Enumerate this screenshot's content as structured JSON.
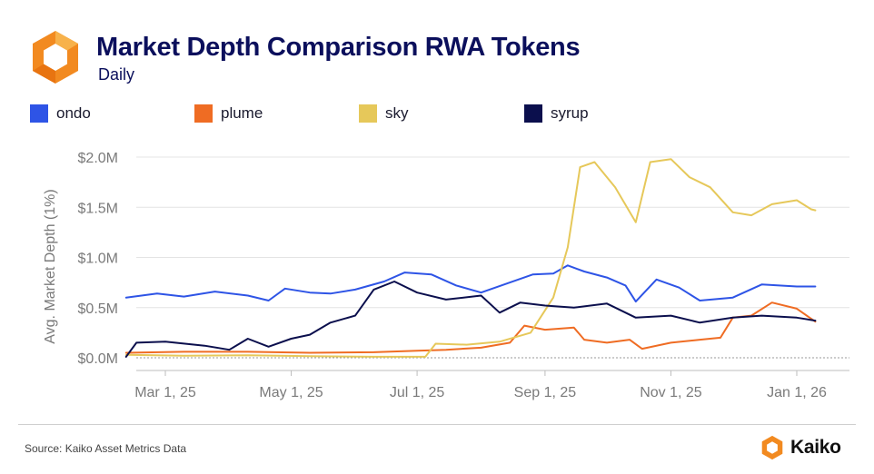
{
  "title": "Market Depth Comparison RWA Tokens",
  "subtitle": "Daily",
  "source": "Source: Kaiko Asset Metrics Data",
  "brand": "Kaiko",
  "colors": {
    "title": "#0b0f5c",
    "ondo": "#2e54e6",
    "plume": "#ef6c23",
    "sky": "#e6c85a",
    "syrup": "#0b0f4d",
    "logo": "#f28a20"
  },
  "legend": [
    {
      "key": "ondo",
      "label": "ondo"
    },
    {
      "key": "plume",
      "label": "plume"
    },
    {
      "key": "sky",
      "label": "sky"
    },
    {
      "key": "syrup",
      "label": "syrup"
    }
  ],
  "chart_data": {
    "type": "line",
    "title": "Market Depth Comparison RWA Tokens",
    "subtitle": "Daily",
    "xlabel": "",
    "ylabel": "Avg. Market Depth (1%)",
    "ylim": [
      0,
      2000000
    ],
    "yticks": [
      0,
      500000,
      1000000,
      1500000,
      2000000
    ],
    "ytick_labels": [
      "$0.0M",
      "$0.5M",
      "$1.0M",
      "$1.5M",
      "$2.0M"
    ],
    "x_range": [
      "2025-02-01",
      "2026-01-20"
    ],
    "xticks": [
      "2025-03-01",
      "2025-05-01",
      "2025-07-01",
      "2025-09-01",
      "2025-11-01",
      "2026-01-01"
    ],
    "xtick_labels": [
      "Mar 1, 25",
      "May 1, 25",
      "Jul 1, 25",
      "Sep 1, 25",
      "Nov 1, 25",
      "Jan 1, 26"
    ],
    "baseline_dashed": true,
    "series": [
      {
        "name": "ondo",
        "color": "#2e54e6",
        "points": [
          [
            "2025-02-10",
            600000
          ],
          [
            "2025-02-25",
            640000
          ],
          [
            "2025-03-10",
            610000
          ],
          [
            "2025-03-25",
            660000
          ],
          [
            "2025-04-10",
            620000
          ],
          [
            "2025-04-20",
            570000
          ],
          [
            "2025-04-28",
            690000
          ],
          [
            "2025-05-10",
            650000
          ],
          [
            "2025-05-20",
            640000
          ],
          [
            "2025-06-01",
            680000
          ],
          [
            "2025-06-15",
            760000
          ],
          [
            "2025-06-25",
            850000
          ],
          [
            "2025-07-08",
            830000
          ],
          [
            "2025-07-20",
            720000
          ],
          [
            "2025-08-01",
            650000
          ],
          [
            "2025-08-15",
            750000
          ],
          [
            "2025-08-26",
            830000
          ],
          [
            "2025-09-05",
            840000
          ],
          [
            "2025-09-12",
            920000
          ],
          [
            "2025-09-20",
            860000
          ],
          [
            "2025-10-01",
            800000
          ],
          [
            "2025-10-10",
            720000
          ],
          [
            "2025-10-15",
            560000
          ],
          [
            "2025-10-25",
            780000
          ],
          [
            "2025-11-05",
            700000
          ],
          [
            "2025-11-15",
            570000
          ],
          [
            "2025-12-01",
            600000
          ],
          [
            "2025-12-15",
            730000
          ],
          [
            "2026-01-01",
            710000
          ],
          [
            "2026-01-10",
            710000
          ]
        ]
      },
      {
        "name": "plume",
        "color": "#ef6c23",
        "points": [
          [
            "2025-02-10",
            50000
          ],
          [
            "2025-03-10",
            60000
          ],
          [
            "2025-04-10",
            60000
          ],
          [
            "2025-05-10",
            50000
          ],
          [
            "2025-06-10",
            55000
          ],
          [
            "2025-07-01",
            70000
          ],
          [
            "2025-07-15",
            80000
          ],
          [
            "2025-08-01",
            100000
          ],
          [
            "2025-08-15",
            150000
          ],
          [
            "2025-08-22",
            320000
          ],
          [
            "2025-09-01",
            280000
          ],
          [
            "2025-09-15",
            300000
          ],
          [
            "2025-09-20",
            180000
          ],
          [
            "2025-10-01",
            150000
          ],
          [
            "2025-10-12",
            180000
          ],
          [
            "2025-10-18",
            90000
          ],
          [
            "2025-11-01",
            150000
          ],
          [
            "2025-11-15",
            180000
          ],
          [
            "2025-11-25",
            200000
          ],
          [
            "2025-12-01",
            400000
          ],
          [
            "2025-12-10",
            420000
          ],
          [
            "2025-12-20",
            550000
          ],
          [
            "2026-01-01",
            490000
          ],
          [
            "2026-01-10",
            360000
          ]
        ]
      },
      {
        "name": "sky",
        "color": "#e6c85a",
        "points": [
          [
            "2025-02-10",
            30000
          ],
          [
            "2025-03-10",
            20000
          ],
          [
            "2025-04-10",
            25000
          ],
          [
            "2025-05-10",
            15000
          ],
          [
            "2025-06-10",
            10000
          ],
          [
            "2025-07-05",
            10000
          ],
          [
            "2025-07-10",
            140000
          ],
          [
            "2025-07-25",
            130000
          ],
          [
            "2025-08-10",
            160000
          ],
          [
            "2025-08-25",
            250000
          ],
          [
            "2025-09-05",
            600000
          ],
          [
            "2025-09-12",
            1100000
          ],
          [
            "2025-09-18",
            1900000
          ],
          [
            "2025-09-25",
            1950000
          ],
          [
            "2025-10-05",
            1700000
          ],
          [
            "2025-10-15",
            1350000
          ],
          [
            "2025-10-22",
            1950000
          ],
          [
            "2025-11-01",
            1980000
          ],
          [
            "2025-11-10",
            1800000
          ],
          [
            "2025-11-20",
            1700000
          ],
          [
            "2025-12-01",
            1450000
          ],
          [
            "2025-12-10",
            1420000
          ],
          [
            "2025-12-20",
            1530000
          ],
          [
            "2026-01-01",
            1570000
          ],
          [
            "2026-01-08",
            1480000
          ],
          [
            "2026-01-10",
            1470000
          ]
        ]
      },
      {
        "name": "syrup",
        "color": "#0b0f4d",
        "points": [
          [
            "2025-02-10",
            10000
          ],
          [
            "2025-02-15",
            150000
          ],
          [
            "2025-03-01",
            160000
          ],
          [
            "2025-03-20",
            120000
          ],
          [
            "2025-04-01",
            80000
          ],
          [
            "2025-04-10",
            190000
          ],
          [
            "2025-04-20",
            110000
          ],
          [
            "2025-05-01",
            190000
          ],
          [
            "2025-05-10",
            230000
          ],
          [
            "2025-05-20",
            350000
          ],
          [
            "2025-06-01",
            420000
          ],
          [
            "2025-06-10",
            680000
          ],
          [
            "2025-06-20",
            760000
          ],
          [
            "2025-07-01",
            650000
          ],
          [
            "2025-07-15",
            580000
          ],
          [
            "2025-08-01",
            620000
          ],
          [
            "2025-08-10",
            450000
          ],
          [
            "2025-08-20",
            550000
          ],
          [
            "2025-09-01",
            520000
          ],
          [
            "2025-09-15",
            500000
          ],
          [
            "2025-10-01",
            540000
          ],
          [
            "2025-10-15",
            400000
          ],
          [
            "2025-11-01",
            420000
          ],
          [
            "2025-11-15",
            350000
          ],
          [
            "2025-12-01",
            400000
          ],
          [
            "2025-12-15",
            420000
          ],
          [
            "2026-01-01",
            400000
          ],
          [
            "2026-01-10",
            370000
          ]
        ]
      }
    ]
  }
}
